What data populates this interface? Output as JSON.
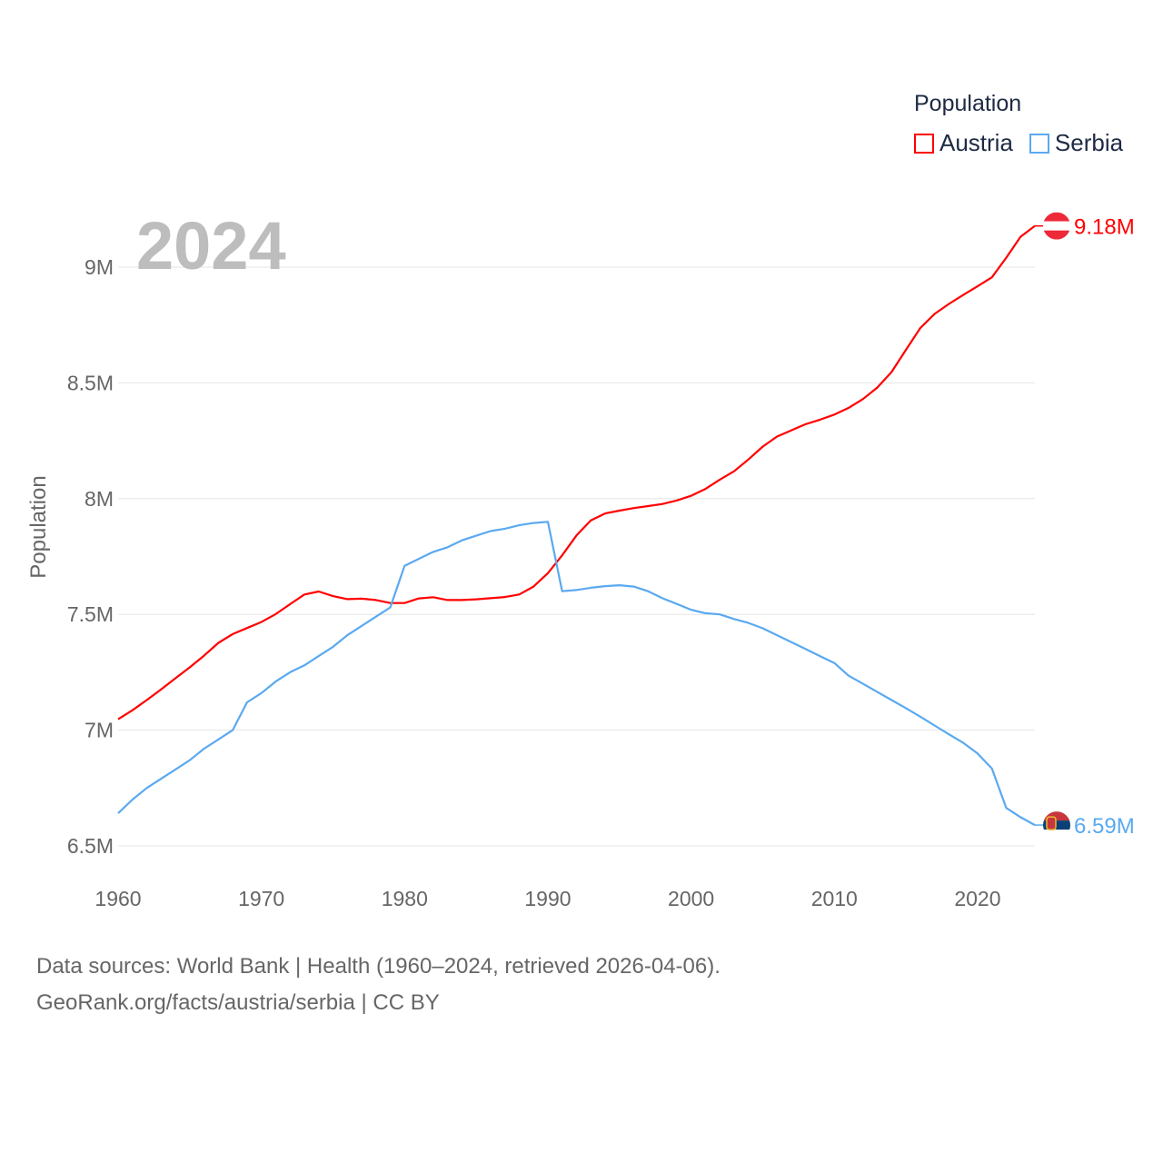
{
  "chart_data": {
    "type": "line",
    "title": "",
    "year_label": "2024",
    "xlabel": "",
    "ylabel": "Population",
    "xlim": [
      1960,
      2024
    ],
    "ylim": [
      6.5,
      9.25
    ],
    "x_ticks": [
      "1960",
      "1970",
      "1980",
      "1990",
      "2000",
      "2010",
      "2020"
    ],
    "y_ticks": [
      {
        "v": 6.5,
        "label": "6.5M"
      },
      {
        "v": 7,
        "label": "7M"
      },
      {
        "v": 7.5,
        "label": "7.5M"
      },
      {
        "v": 8,
        "label": "8M"
      },
      {
        "v": 8.5,
        "label": "8.5M"
      },
      {
        "v": 9,
        "label": "9M"
      }
    ],
    "grid": true,
    "legend": {
      "title": "Population",
      "placement": "top-right"
    },
    "x_start": 1960,
    "series": [
      {
        "name": "Austria",
        "color": "#ff0000",
        "end_label": "9.18M",
        "flag": "austria-flag",
        "values": [
          7.047,
          7.086,
          7.13,
          7.176,
          7.224,
          7.271,
          7.322,
          7.377,
          7.415,
          7.441,
          7.467,
          7.501,
          7.544,
          7.586,
          7.599,
          7.579,
          7.566,
          7.568,
          7.562,
          7.549,
          7.549,
          7.569,
          7.574,
          7.562,
          7.562,
          7.565,
          7.57,
          7.575,
          7.586,
          7.62,
          7.678,
          7.755,
          7.841,
          7.906,
          7.936,
          7.948,
          7.959,
          7.968,
          7.977,
          7.992,
          8.012,
          8.042,
          8.082,
          8.118,
          8.169,
          8.225,
          8.268,
          8.295,
          8.322,
          8.341,
          8.363,
          8.392,
          8.43,
          8.48,
          8.547,
          8.643,
          8.737,
          8.798,
          8.841,
          8.88,
          8.917,
          8.956,
          9.041,
          9.131,
          9.178
        ]
      },
      {
        "name": "Serbia",
        "color": "#5aa9f0",
        "end_label": "6.59M",
        "flag": "serbia-flag",
        "values": [
          6.641,
          6.7,
          6.75,
          6.79,
          6.83,
          6.87,
          6.92,
          6.96,
          7.0,
          7.12,
          7.16,
          7.21,
          7.25,
          7.28,
          7.32,
          7.36,
          7.41,
          7.45,
          7.49,
          7.53,
          7.71,
          7.74,
          7.77,
          7.79,
          7.82,
          7.84,
          7.86,
          7.87,
          7.885,
          7.895,
          7.9,
          7.6,
          7.605,
          7.615,
          7.622,
          7.626,
          7.62,
          7.6,
          7.57,
          7.545,
          7.52,
          7.505,
          7.5,
          7.48,
          7.463,
          7.44,
          7.41,
          7.38,
          7.35,
          7.32,
          7.29,
          7.235,
          7.2,
          7.165,
          7.13,
          7.095,
          7.058,
          7.02,
          6.982,
          6.945,
          6.899,
          6.834,
          6.664,
          6.624,
          6.59
        ]
      }
    ]
  },
  "footer": {
    "line1": "Data sources: World Bank | Health (1960–2024, retrieved 2026-04-06).",
    "line2": "GeoRank.org/facts/austria/serbia | CC BY"
  }
}
